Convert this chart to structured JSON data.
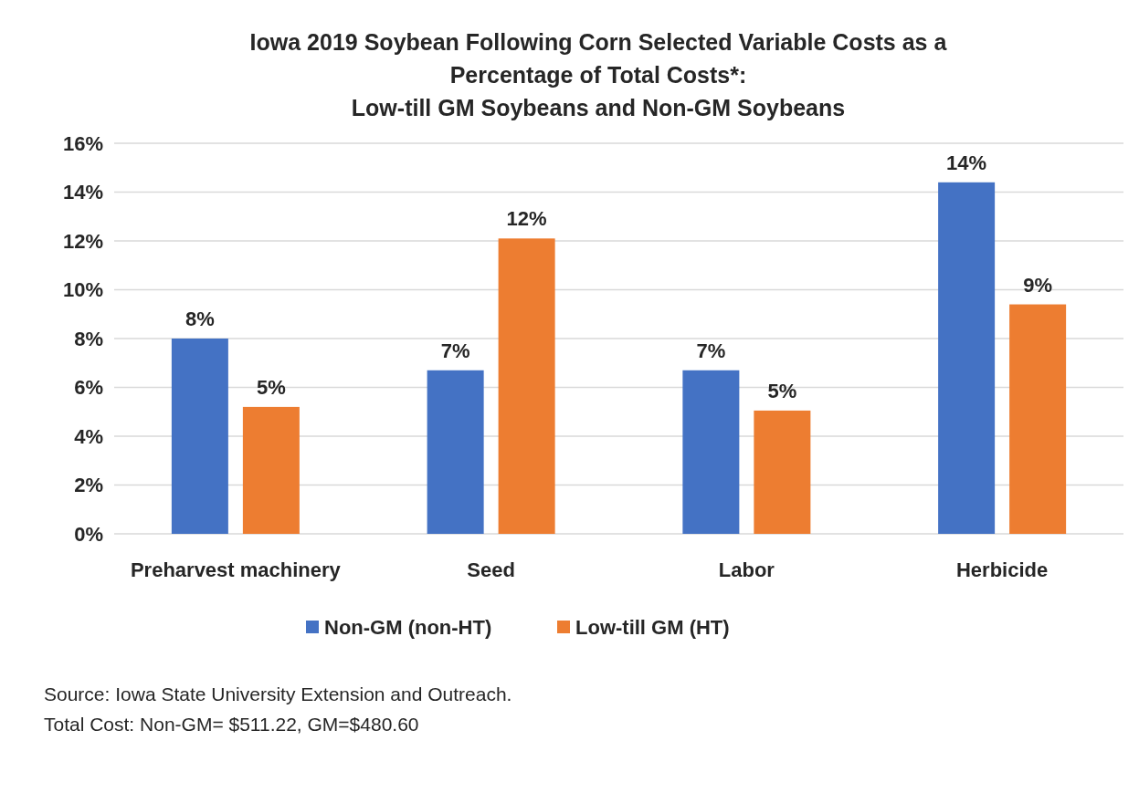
{
  "chart_data": {
    "type": "bar",
    "title": "Iowa 2019 Soybean Following Corn Selected Variable Costs as a\nPercentage of Total Costs*:",
    "subtitle": "Low-till GM Soybeans and Non-GM Soybeans",
    "categories": [
      "Preharvest machinery",
      "Seed",
      "Labor",
      "Herbicide"
    ],
    "series": [
      {
        "name": "Non-GM (non-HT)",
        "color": "#4472c4",
        "values": [
          8.0,
          6.7,
          6.7,
          14.4
        ],
        "value_labels": [
          "8%",
          "7%",
          "7%",
          "14%"
        ]
      },
      {
        "name": "Low-till GM (HT)",
        "color": "#ed7d31",
        "values": [
          5.2,
          12.1,
          5.05,
          9.4
        ],
        "value_labels": [
          "5%",
          "12%",
          "5%",
          "9%"
        ]
      }
    ],
    "ylim": [
      0,
      16
    ],
    "yticks": [
      {
        "value": 0,
        "label": "0%"
      },
      {
        "value": 2,
        "label": "2%"
      },
      {
        "value": 4,
        "label": "4%"
      },
      {
        "value": 6,
        "label": "6%"
      },
      {
        "value": 8,
        "label": "8%"
      },
      {
        "value": 10,
        "label": "10%"
      },
      {
        "value": 12,
        "label": "12%"
      },
      {
        "value": 14,
        "label": "14%"
      },
      {
        "value": 16,
        "label": "16%"
      }
    ],
    "grid": "y",
    "legend": "bottom",
    "annotations": [
      "Source: Iowa State University Extension and Outreach.",
      "Total Cost: Non-GM= $511.22, GM=$480.60"
    ]
  }
}
